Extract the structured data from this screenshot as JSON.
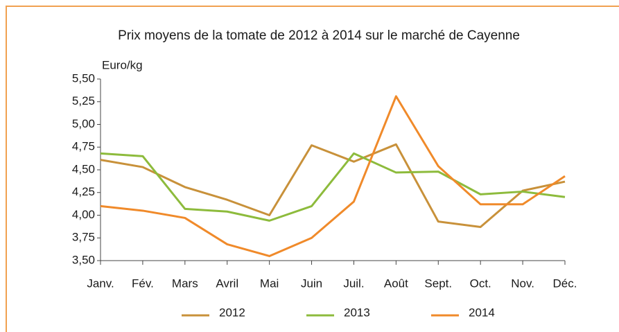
{
  "chart_data": {
    "type": "line",
    "title": "Prix moyens de la tomate de 2012 à 2014 sur le marché de Cayenne",
    "y_label": "Euro/kg",
    "categories": [
      "Janv.",
      "Fév.",
      "Mars",
      "Avril",
      "Mai",
      "Juin",
      "Juil.",
      "Août",
      "Sept.",
      "Oct.",
      "Nov.",
      "Déc."
    ],
    "series": [
      {
        "name": "2012",
        "color": "#c8913a",
        "values": [
          4.61,
          4.53,
          4.31,
          4.17,
          4.0,
          4.77,
          4.59,
          4.78,
          3.93,
          3.87,
          4.27,
          4.37
        ]
      },
      {
        "name": "2013",
        "color": "#8dbb3c",
        "values": [
          4.68,
          4.65,
          4.07,
          4.04,
          3.94,
          4.1,
          4.68,
          4.47,
          4.48,
          4.23,
          4.26,
          4.2
        ]
      },
      {
        "name": "2014",
        "color": "#f08a2a",
        "values": [
          4.1,
          4.05,
          3.97,
          3.68,
          3.55,
          3.75,
          4.15,
          5.31,
          4.54,
          4.12,
          4.12,
          4.43
        ]
      }
    ],
    "ylim": [
      3.5,
      5.5
    ],
    "yticks": [
      {
        "value": 3.5,
        "label": "3,50"
      },
      {
        "value": 3.75,
        "label": "3,75"
      },
      {
        "value": 4,
        "label": "4,00"
      },
      {
        "value": 4.25,
        "label": "4,25"
      },
      {
        "value": 4.5,
        "label": "4,50"
      },
      {
        "value": 4.75,
        "label": "4,75"
      },
      {
        "value": 5,
        "label": "5,00"
      },
      {
        "value": 5.25,
        "label": "5,25"
      },
      {
        "value": 5.5,
        "label": "5,50"
      }
    ],
    "grid": false
  }
}
